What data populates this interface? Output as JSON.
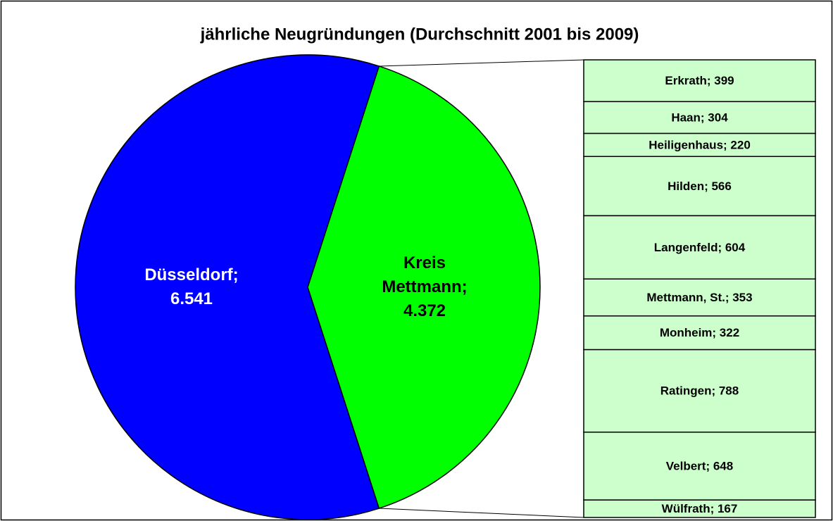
{
  "chart_data": {
    "type": "pie-of-bar",
    "title": "jährliche Neugründungen (Durchschnitt 2001 bis 2009)",
    "values": [
      6541,
      4372
    ],
    "value_labels": [
      "Düsseldorf; 6.541",
      "Kreis Mettmann; 4.372"
    ],
    "colors": [
      "#0000ff",
      "#00ff00"
    ],
    "label_colors": [
      "#ffffff",
      "#000000"
    ],
    "bar": {
      "values": [
        399,
        304,
        220,
        566,
        604,
        353,
        322,
        788,
        648,
        167
      ],
      "value_labels": [
        "Erkrath; 399",
        "Haan; 304",
        "Heiligenhaus; 220",
        "Hilden; 566",
        "Langenfeld; 604",
        "Mettmann, St.; 353",
        "Monheim; 322",
        "Ratingen; 788",
        "Velbert; 648",
        "Wülfrath; 167"
      ],
      "color": "#ccffcc"
    }
  }
}
